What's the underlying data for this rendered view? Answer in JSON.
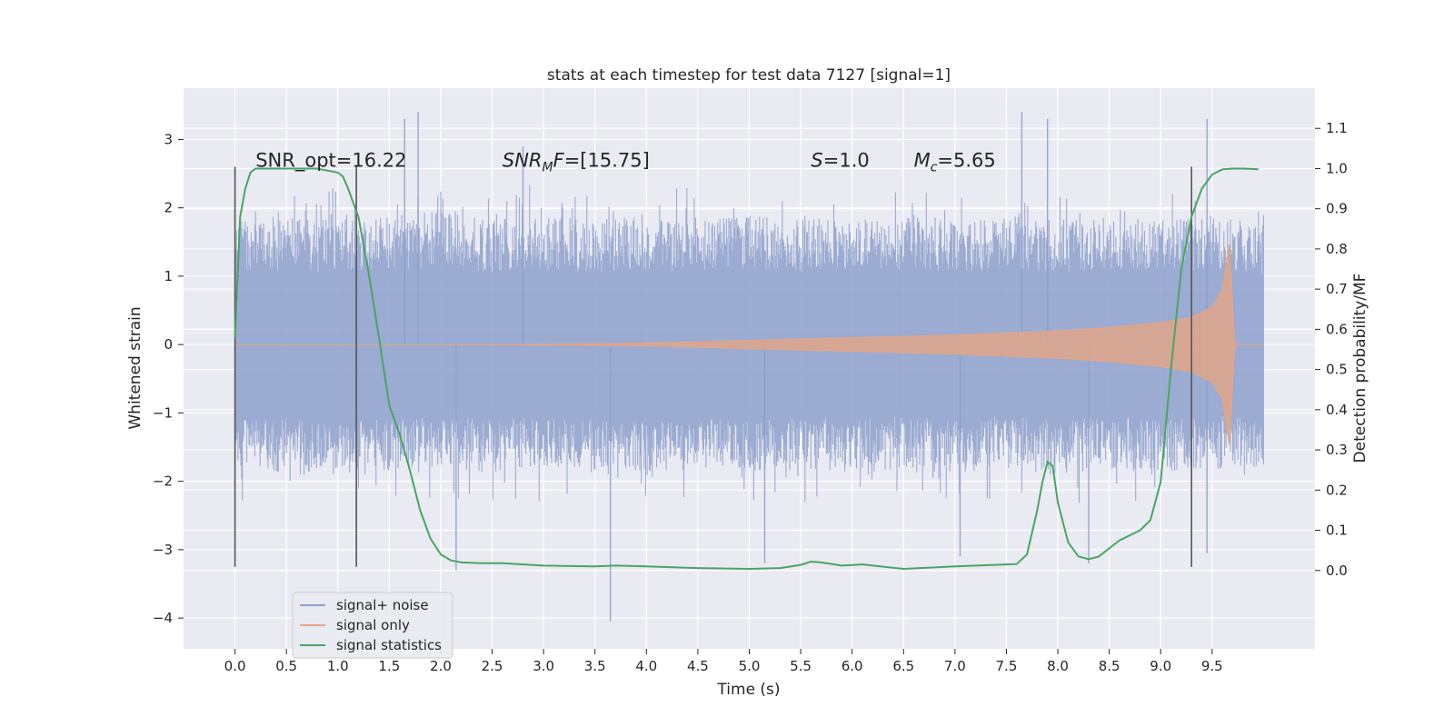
{
  "chart_data": {
    "type": "line",
    "title": "stats at each timestep for test data 7127 [signal=1]",
    "xlabel": "Time (s)",
    "ylabel": "Whitened strain",
    "y2label": "Detection probability/MF",
    "xlim": [
      -0.5,
      10.5
    ],
    "ylim": [
      -4.45,
      3.75
    ],
    "y2lim": [
      -0.195,
      1.2
    ],
    "x_ticks": [
      0.0,
      0.5,
      1.0,
      1.5,
      2.0,
      2.5,
      3.0,
      3.5,
      4.0,
      4.5,
      5.0,
      5.5,
      6.0,
      6.5,
      7.0,
      7.5,
      8.0,
      8.5,
      9.0,
      9.5
    ],
    "x_tick_labels": [
      "0.0",
      "0.5",
      "1.0",
      "1.5",
      "2.0",
      "2.5",
      "3.0",
      "3.5",
      "4.0",
      "4.5",
      "5.0",
      "5.5",
      "6.0",
      "6.5",
      "7.0",
      "7.5",
      "8.0",
      "8.5",
      "9.0",
      "9.5"
    ],
    "y_ticks": [
      3,
      2,
      1,
      0,
      -1,
      -2,
      -3,
      -4
    ],
    "y_tick_labels": [
      "3",
      "2",
      "1",
      "0",
      "−1",
      "−2",
      "−3",
      "−4"
    ],
    "y2_ticks": [
      1.1,
      1.0,
      0.9,
      0.8,
      0.7,
      0.6,
      0.5,
      0.4,
      0.3,
      0.2,
      0.1,
      0.0
    ],
    "y2_tick_labels": [
      "1.1",
      "1.0",
      "0.9",
      "0.8",
      "0.7",
      "0.6",
      "0.5",
      "0.4",
      "0.3",
      "0.2",
      "0.1",
      "0.0"
    ],
    "grid": true,
    "legend_position": "lower-left",
    "background": "#eaeaf2",
    "annotations": [
      {
        "name": "snr-opt-annotation",
        "x": 0.2,
        "y": 2.6,
        "parts": [
          {
            "t": "SNR_opt=16.22"
          }
        ]
      },
      {
        "name": "snr-mf-annotation",
        "x": 2.6,
        "y": 2.6,
        "parts": [
          {
            "t": "SNR",
            "i": true
          },
          {
            "t": "M",
            "i": true,
            "sub": true
          },
          {
            "t": "F",
            "i": true
          },
          {
            "t": "=[15.75]"
          }
        ]
      },
      {
        "name": "s-annotation",
        "x": 5.6,
        "y": 2.6,
        "parts": [
          {
            "t": "S",
            "i": true
          },
          {
            "t": "=1.0"
          }
        ]
      },
      {
        "name": "mc-annotation",
        "x": 6.6,
        "y": 2.6,
        "parts": [
          {
            "t": "M",
            "i": true
          },
          {
            "t": "c",
            "i": true,
            "sub": true
          },
          {
            "t": "=5.65"
          }
        ]
      }
    ],
    "vertical_markers": [
      0.0,
      1.18,
      9.3
    ],
    "vertical_marker_range": [
      -3.25,
      2.6
    ],
    "noise_envelope": {
      "x": [
        0.0,
        0.5,
        1.0,
        1.5,
        2.0,
        2.5,
        3.0,
        3.5,
        4.0,
        4.5,
        5.0,
        5.5,
        6.0,
        6.5,
        7.0,
        7.5,
        8.0,
        8.5,
        9.0,
        9.5,
        10.0
      ],
      "typical_upper": [
        1.4,
        1.45,
        1.4,
        1.45,
        1.5,
        1.4,
        1.45,
        1.4,
        1.45,
        1.4,
        1.45,
        1.4,
        1.45,
        1.45,
        1.4,
        1.45,
        1.4,
        1.45,
        1.4,
        1.45,
        1.35
      ],
      "typical_lower": [
        -1.4,
        -1.45,
        -1.5,
        -1.45,
        -1.4,
        -1.45,
        -1.4,
        -1.45,
        -1.5,
        -1.4,
        -1.45,
        -1.4,
        -1.45,
        -1.4,
        -1.45,
        -1.4,
        -1.45,
        -1.4,
        -1.45,
        -1.4,
        -1.4
      ],
      "peak_spikes": [
        {
          "x": 1.65,
          "y": 3.3
        },
        {
          "x": 1.78,
          "y": 3.4
        },
        {
          "x": 2.8,
          "y": 2.9
        },
        {
          "x": 7.65,
          "y": 3.4
        },
        {
          "x": 7.9,
          "y": 3.3
        },
        {
          "x": 9.45,
          "y": 3.3
        },
        {
          "x": 3.65,
          "y": -4.05
        },
        {
          "x": 2.15,
          "y": -3.3
        },
        {
          "x": 5.15,
          "y": -3.2
        },
        {
          "x": 8.3,
          "y": -3.2
        },
        {
          "x": 9.45,
          "y": -3.05
        },
        {
          "x": 7.05,
          "y": -3.1
        }
      ]
    },
    "chirp_envelope": {
      "x": [
        0.0,
        1.0,
        2.0,
        3.0,
        4.0,
        4.5,
        5.0,
        5.5,
        6.0,
        6.5,
        7.0,
        7.5,
        8.0,
        8.5,
        9.0,
        9.3,
        9.5,
        9.6,
        9.67,
        9.72,
        10.0
      ],
      "amplitude": [
        0.0,
        0.0,
        0.0,
        0.005,
        0.02,
        0.04,
        0.06,
        0.08,
        0.1,
        0.12,
        0.14,
        0.17,
        0.2,
        0.25,
        0.32,
        0.4,
        0.55,
        0.8,
        1.5,
        0.0,
        0.0
      ]
    },
    "series": [
      {
        "name": "signal+ noise",
        "color": "#8da0cb",
        "axis": "left"
      },
      {
        "name": "signal only",
        "color": "#e5a585",
        "axis": "left"
      },
      {
        "name": "signal statistics",
        "color": "#4aa564",
        "axis": "right",
        "x": [
          0.0,
          0.05,
          0.1,
          0.15,
          0.2,
          0.3,
          0.5,
          0.8,
          1.0,
          1.05,
          1.1,
          1.2,
          1.3,
          1.4,
          1.5,
          1.6,
          1.7,
          1.8,
          1.9,
          2.0,
          2.1,
          2.2,
          2.4,
          2.6,
          3.0,
          3.5,
          3.7,
          4.0,
          4.5,
          5.0,
          5.3,
          5.5,
          5.6,
          5.7,
          5.9,
          6.1,
          6.5,
          7.0,
          7.5,
          7.6,
          7.7,
          7.8,
          7.85,
          7.9,
          7.95,
          8.0,
          8.1,
          8.2,
          8.3,
          8.4,
          8.5,
          8.6,
          8.8,
          8.9,
          9.0,
          9.1,
          9.2,
          9.3,
          9.4,
          9.5,
          9.6,
          9.7,
          9.8,
          9.95
        ],
        "values": [
          0.58,
          0.88,
          0.95,
          0.99,
          1.0,
          1.0,
          1.0,
          1.0,
          0.99,
          0.98,
          0.95,
          0.88,
          0.74,
          0.58,
          0.41,
          0.34,
          0.25,
          0.15,
          0.08,
          0.04,
          0.025,
          0.02,
          0.018,
          0.018,
          0.012,
          0.01,
          0.012,
          0.01,
          0.006,
          0.004,
          0.006,
          0.014,
          0.022,
          0.02,
          0.012,
          0.015,
          0.004,
          0.01,
          0.015,
          0.016,
          0.04,
          0.15,
          0.22,
          0.27,
          0.26,
          0.17,
          0.07,
          0.035,
          0.028,
          0.035,
          0.055,
          0.075,
          0.1,
          0.125,
          0.22,
          0.5,
          0.75,
          0.88,
          0.95,
          0.985,
          0.998,
          1.0,
          1.0,
          0.998
        ]
      }
    ]
  }
}
